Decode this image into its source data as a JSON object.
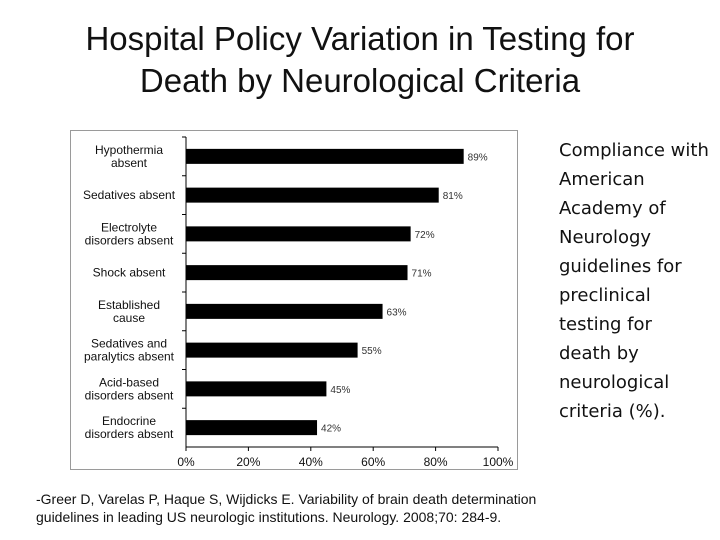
{
  "slide": {
    "title_lines": [
      "Hospital Policy Variation in Testing for",
      "Death by Neurological Criteria"
    ],
    "side_note": "Compliance with American Academy of Neurology guidelines for preclinical testing for death by neurological criteria (%).",
    "citation_lines": [
      "-Greer D, Varelas P, Haque S, Wijdicks E. Variability of brain death determination",
      "guidelines in leading US neurologic institutions.  Neurology. 2008;70: 284-9."
    ]
  },
  "chart_data": {
    "type": "bar",
    "orientation": "horizontal",
    "categories": [
      [
        "Hypothermia",
        "absent"
      ],
      [
        "Sedatives absent"
      ],
      [
        "Electrolyte",
        "disorders absent"
      ],
      [
        "Shock absent"
      ],
      [
        "Established",
        "cause"
      ],
      [
        "Sedatives and",
        "paralytics absent"
      ],
      [
        "Acid-based",
        "disorders absent"
      ],
      [
        "Endocrine",
        "disorders absent"
      ]
    ],
    "values": [
      89,
      81,
      72,
      71,
      63,
      55,
      45,
      42
    ],
    "data_labels": [
      "89%",
      "81%",
      "72%",
      "71%",
      "63%",
      "55%",
      "45%",
      "42%"
    ],
    "xlim": [
      0,
      100
    ],
    "x_ticks": [
      0,
      20,
      40,
      60,
      80,
      100
    ],
    "x_tick_labels": [
      "0%",
      "20%",
      "40%",
      "60%",
      "80%",
      "100%"
    ],
    "grid": false,
    "bar_color": "#000000"
  }
}
